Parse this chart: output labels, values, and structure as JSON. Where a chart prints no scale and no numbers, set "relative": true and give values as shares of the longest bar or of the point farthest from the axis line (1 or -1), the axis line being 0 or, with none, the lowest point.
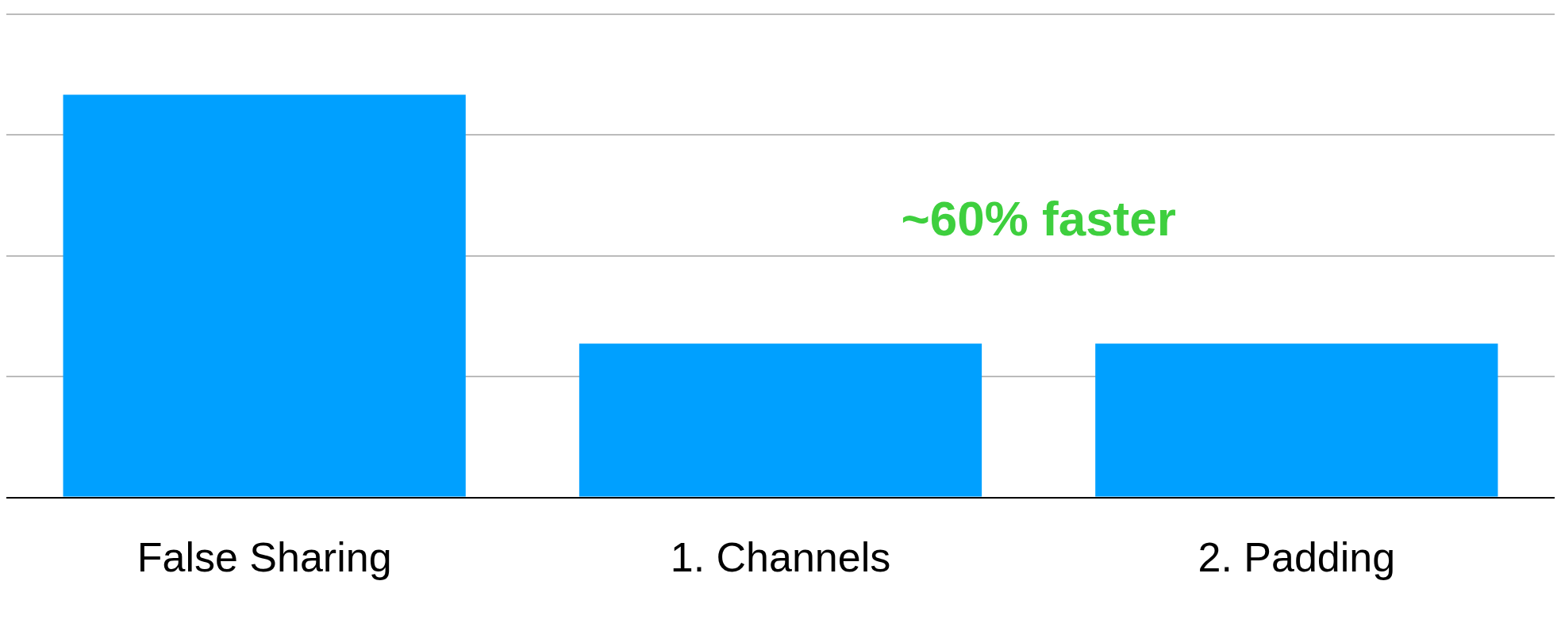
{
  "chart_data": {
    "type": "bar",
    "relative": true,
    "categories": [
      "False Sharing",
      "1. Channels",
      "2. Padding"
    ],
    "values": [
      1,
      0.382,
      0.382
    ],
    "color": "#00a0ff",
    "grid": true,
    "legend": false,
    "annotations": [
      "~60% faster"
    ]
  }
}
